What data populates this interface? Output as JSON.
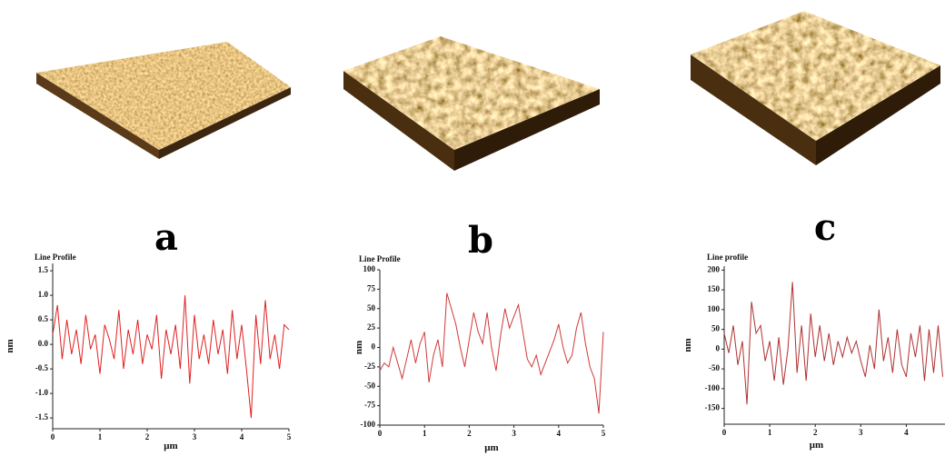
{
  "panel_labels": [
    "a",
    "b",
    "c"
  ],
  "chart_data": [
    {
      "type": "line",
      "title": "Line Profile",
      "xlabel": "μm",
      "ylabel": "nm",
      "color": "#e02020",
      "x": [
        0,
        0.1,
        0.2,
        0.3,
        0.4,
        0.5,
        0.6,
        0.7,
        0.8,
        0.9,
        1,
        1.1,
        1.2,
        1.3,
        1.4,
        1.5,
        1.6,
        1.7,
        1.8,
        1.9,
        2,
        2.1,
        2.2,
        2.3,
        2.4,
        2.5,
        2.6,
        2.7,
        2.8,
        2.9,
        3,
        3.1,
        3.2,
        3.3,
        3.4,
        3.5,
        3.6,
        3.7,
        3.8,
        3.9,
        4,
        4.1,
        4.2,
        4.3,
        4.4,
        4.5,
        4.6,
        4.7,
        4.8,
        4.9,
        5
      ],
      "values": [
        0.2,
        0.8,
        -0.3,
        0.5,
        -0.2,
        0.3,
        -0.4,
        0.6,
        -0.1,
        0.2,
        -0.6,
        0.4,
        0.1,
        -0.3,
        0.7,
        -0.5,
        0.3,
        -0.2,
        0.5,
        -0.4,
        0.2,
        -0.1,
        0.6,
        -0.7,
        0.3,
        -0.2,
        0.4,
        -0.5,
        1.0,
        -0.8,
        0.6,
        -0.3,
        0.2,
        -0.4,
        0.5,
        -0.2,
        0.3,
        -0.6,
        0.7,
        -0.3,
        0.4,
        -0.5,
        -1.5,
        0.6,
        -0.4,
        0.9,
        -0.3,
        0.2,
        -0.5,
        0.4,
        0.3
      ],
      "xlim": [
        0,
        5
      ],
      "xticks": [
        0,
        1,
        2,
        3,
        4,
        5
      ],
      "ylim": [
        -1.72,
        1.65
      ],
      "yticks": [
        1.5,
        {
          "value": 1,
          "label": "1.0"
        },
        0.5,
        {
          "value": 0,
          "label": "0.0"
        },
        -0.5,
        {
          "value": -1,
          "label": "-1.0"
        },
        -1.5
      ]
    },
    {
      "type": "line",
      "title": "Line Profile",
      "xlabel": "μm",
      "ylabel": "nm",
      "color": "#d03838",
      "x": [
        0,
        0.1,
        0.2,
        0.3,
        0.4,
        0.5,
        0.6,
        0.7,
        0.8,
        0.9,
        1,
        1.1,
        1.2,
        1.3,
        1.4,
        1.5,
        1.6,
        1.7,
        1.8,
        1.9,
        2,
        2.1,
        2.2,
        2.3,
        2.4,
        2.5,
        2.6,
        2.7,
        2.8,
        2.9,
        3,
        3.1,
        3.2,
        3.3,
        3.4,
        3.5,
        3.6,
        3.7,
        3.8,
        3.9,
        4,
        4.1,
        4.2,
        4.3,
        4.4,
        4.5,
        4.6,
        4.7,
        4.8,
        4.9,
        5
      ],
      "values": [
        -30,
        -20,
        -25,
        0,
        -20,
        -40,
        -15,
        10,
        -20,
        5,
        20,
        -45,
        -10,
        10,
        -25,
        70,
        50,
        30,
        0,
        -25,
        10,
        45,
        20,
        5,
        45,
        0,
        -30,
        15,
        50,
        25,
        40,
        55,
        20,
        -15,
        -25,
        -10,
        -35,
        -20,
        -5,
        10,
        30,
        0,
        -20,
        -10,
        25,
        45,
        5,
        -25,
        -40,
        -85,
        20
      ],
      "xlim": [
        0,
        5
      ],
      "xticks": [
        0,
        1,
        2,
        3,
        4,
        5
      ],
      "ylim": [
        -100,
        100
      ],
      "yticks": [
        100,
        75,
        50,
        25,
        0,
        -25,
        -50,
        -75,
        -100
      ]
    },
    {
      "type": "line",
      "title": "Line profile",
      "xlabel": "μm",
      "ylabel": "nm",
      "color": "#b03030",
      "x": [
        0,
        0.1,
        0.2,
        0.3,
        0.4,
        0.5,
        0.6,
        0.7,
        0.8,
        0.9,
        1,
        1.1,
        1.2,
        1.3,
        1.4,
        1.5,
        1.6,
        1.7,
        1.8,
        1.9,
        2,
        2.1,
        2.2,
        2.3,
        2.4,
        2.5,
        2.6,
        2.7,
        2.8,
        2.9,
        3,
        3.1,
        3.2,
        3.3,
        3.4,
        3.5,
        3.6,
        3.7,
        3.8,
        3.9,
        4,
        4.1,
        4.2,
        4.3,
        4.4,
        4.5,
        4.6,
        4.7,
        4.8
      ],
      "values": [
        40,
        -10,
        60,
        -40,
        20,
        -140,
        120,
        40,
        60,
        -30,
        20,
        -80,
        30,
        -90,
        0,
        170,
        -60,
        60,
        -80,
        90,
        -20,
        60,
        -30,
        40,
        -40,
        20,
        -20,
        30,
        -10,
        20,
        -30,
        -70,
        10,
        -50,
        100,
        -30,
        30,
        -60,
        50,
        -40,
        -70,
        40,
        -20,
        60,
        -80,
        50,
        -60,
        60,
        -70
      ],
      "xlim": [
        0,
        4.85
      ],
      "xticks": [
        0,
        1,
        2,
        3,
        4
      ],
      "ylim": [
        -190,
        210
      ],
      "yticks": [
        200,
        150,
        100,
        50,
        0,
        -50,
        -100,
        -150
      ]
    }
  ]
}
